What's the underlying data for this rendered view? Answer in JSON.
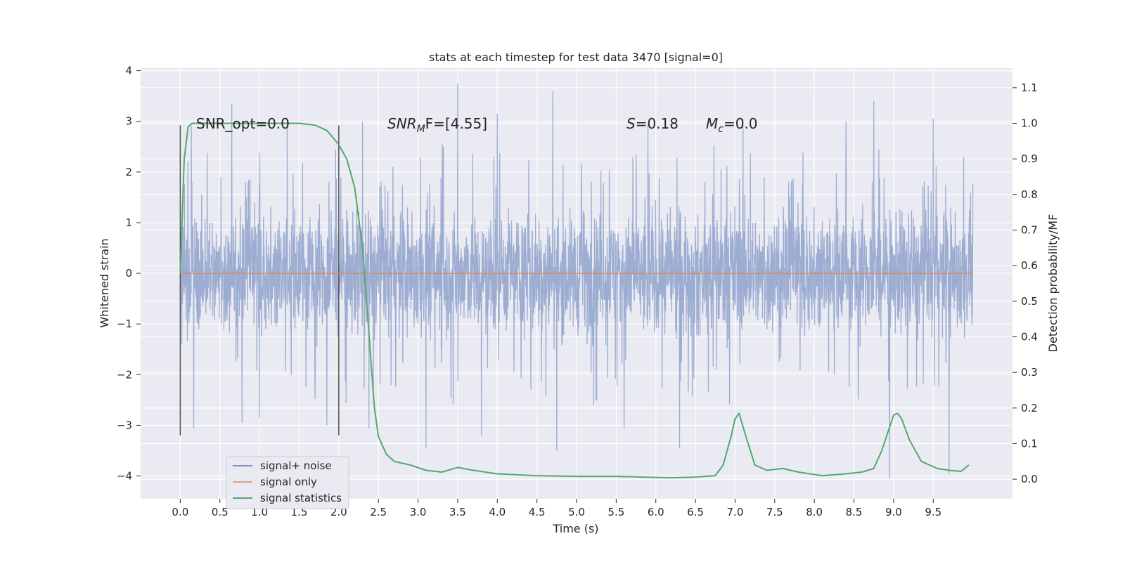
{
  "chart_data": {
    "type": "line",
    "title": "stats at each timestep for test data 3470 [signal=0]",
    "xlabel": "Time (s)",
    "ylabel_left": "Whitened strain",
    "ylabel_right": "Detection probability/MF",
    "xlim": [
      -0.5,
      10.5
    ],
    "ylim_left": [
      -4.45,
      4.05
    ],
    "ylim_right": [
      -0.055,
      1.155
    ],
    "x_ticks": [
      "0.0",
      "0.5",
      "1.0",
      "1.5",
      "2.0",
      "2.5",
      "3.0",
      "3.5",
      "4.0",
      "4.5",
      "5.0",
      "5.5",
      "6.0",
      "6.5",
      "7.0",
      "7.5",
      "8.0",
      "8.5",
      "9.0",
      "9.5"
    ],
    "y_ticks_left": [
      "−4",
      "−3",
      "−2",
      "−1",
      "0",
      "1",
      "2",
      "3",
      "4"
    ],
    "y_ticks_right": [
      "0.0",
      "0.1",
      "0.2",
      "0.3",
      "0.4",
      "0.5",
      "0.6",
      "0.7",
      "0.8",
      "0.9",
      "1.0",
      "1.1"
    ],
    "grid": true,
    "legend_position": "lower-left",
    "series": [
      {
        "name": "signal+ noise",
        "axis": "left",
        "color": "#7c93c3",
        "x_range": [
          0.0,
          10.0
        ],
        "typical_range": [
          -1.7,
          1.7
        ],
        "peaks": [
          {
            "x": 0.14,
            "y": 2.9
          },
          {
            "x": 0.17,
            "y": -3.05
          },
          {
            "x": 0.65,
            "y": 3.35
          },
          {
            "x": 0.78,
            "y": -2.95
          },
          {
            "x": 1.0,
            "y": -2.85
          },
          {
            "x": 1.35,
            "y": 3.05
          },
          {
            "x": 1.85,
            "y": -3.0
          },
          {
            "x": 2.3,
            "y": 3.0
          },
          {
            "x": 2.38,
            "y": -3.05
          },
          {
            "x": 3.1,
            "y": -3.45
          },
          {
            "x": 3.5,
            "y": 3.75
          },
          {
            "x": 3.8,
            "y": -3.2
          },
          {
            "x": 4.0,
            "y": 3.15
          },
          {
            "x": 4.7,
            "y": 3.6
          },
          {
            "x": 4.75,
            "y": -3.5
          },
          {
            "x": 5.6,
            "y": -3.05
          },
          {
            "x": 6.3,
            "y": -3.45
          },
          {
            "x": 7.1,
            "y": 3.05
          },
          {
            "x": 8.4,
            "y": 3.0
          },
          {
            "x": 8.75,
            "y": 3.4
          },
          {
            "x": 8.95,
            "y": -4.05
          },
          {
            "x": 9.7,
            "y": -3.95
          },
          {
            "x": 9.5,
            "y": 3.05
          },
          {
            "x": 5.9,
            "y": 2.95
          }
        ]
      },
      {
        "name": "signal only",
        "axis": "left",
        "color": "#dd8452",
        "x": [
          0.0,
          10.0
        ],
        "y": [
          0.0,
          0.0
        ]
      },
      {
        "name": "signal statistics",
        "axis": "right",
        "color": "#55a868",
        "x": [
          0.0,
          0.05,
          0.1,
          0.15,
          0.25,
          0.5,
          1.0,
          1.5,
          1.7,
          1.85,
          2.0,
          2.1,
          2.2,
          2.3,
          2.35,
          2.4,
          2.45,
          2.5,
          2.6,
          2.7,
          2.9,
          3.1,
          3.3,
          3.5,
          3.7,
          4.0,
          4.5,
          5.0,
          5.5,
          6.0,
          6.2,
          6.5,
          6.75,
          6.85,
          6.95,
          7.0,
          7.05,
          7.15,
          7.25,
          7.4,
          7.6,
          7.8,
          8.1,
          8.4,
          8.6,
          8.75,
          8.85,
          9.0,
          9.05,
          9.1,
          9.2,
          9.35,
          9.55,
          9.7,
          9.85,
          9.95
        ],
        "y": [
          0.58,
          0.9,
          0.99,
          1.0,
          1.0,
          1.0,
          1.0,
          1.0,
          0.995,
          0.98,
          0.94,
          0.9,
          0.82,
          0.65,
          0.5,
          0.35,
          0.2,
          0.12,
          0.07,
          0.05,
          0.04,
          0.025,
          0.02,
          0.033,
          0.025,
          0.015,
          0.01,
          0.008,
          0.008,
          0.005,
          0.004,
          0.006,
          0.01,
          0.04,
          0.12,
          0.17,
          0.185,
          0.11,
          0.04,
          0.025,
          0.03,
          0.02,
          0.01,
          0.015,
          0.02,
          0.03,
          0.08,
          0.18,
          0.185,
          0.17,
          0.11,
          0.05,
          0.03,
          0.025,
          0.022,
          0.04
        ]
      }
    ],
    "vlines": [
      0.0,
      2.0
    ],
    "annotations": [
      "SNR_opt=0.0",
      "SNR",
      "M",
      "F=[4.55]",
      "S",
      "=0.18",
      "M",
      "c",
      "=0.0"
    ]
  }
}
